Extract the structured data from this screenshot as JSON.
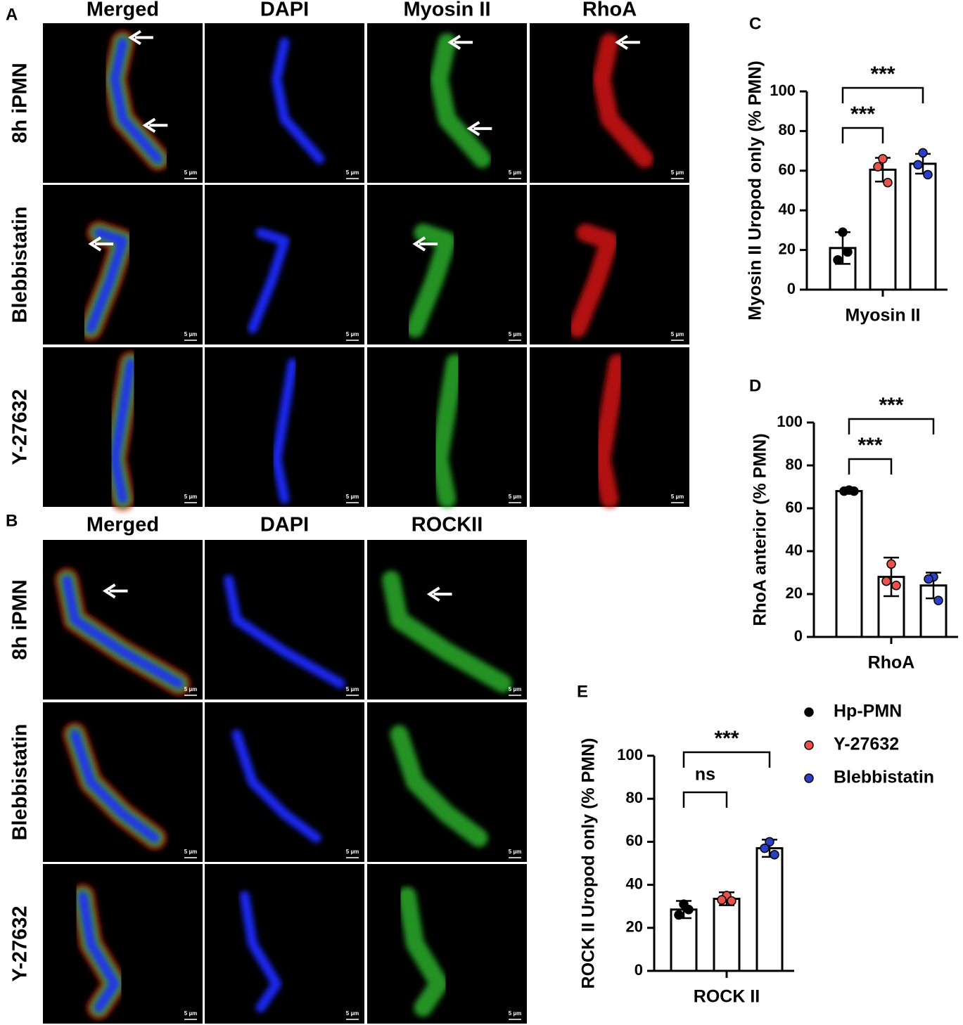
{
  "panel_A": {
    "letter": "A",
    "columns": [
      "Merged",
      "DAPI",
      "Myosin II",
      "RhoA"
    ],
    "rows": [
      "8h iPMN",
      "Blebbistatin",
      "Y-27632"
    ]
  },
  "panel_B": {
    "letter": "B",
    "columns": [
      "Merged",
      "DAPI",
      "ROCKII"
    ],
    "rows": [
      "8h iPMN",
      "Blebbistatin",
      "Y-27632"
    ]
  },
  "scale_bar": "5 µm",
  "legend": [
    {
      "name": "Hp-PMN",
      "color": "#000000"
    },
    {
      "name": "Y-27632",
      "color": "#e8524a"
    },
    {
      "name": "Blebbistatin",
      "color": "#2b3fc4"
    }
  ],
  "chart_data": [
    {
      "type": "bar",
      "letter": "C",
      "ylabel": "Myosin  II Uropod only (% PMN)",
      "categories": [
        "Myosin II"
      ],
      "series": [
        {
          "values": [
            21
          ],
          "errors": [
            8
          ],
          "points": [
            29,
            15,
            19
          ]
        },
        {
          "values": [
            60.5
          ],
          "errors": [
            6
          ],
          "points": [
            66,
            62,
            54
          ]
        },
        {
          "values": [
            63.5
          ],
          "errors": [
            5
          ],
          "points": [
            69,
            63,
            58
          ]
        }
      ],
      "ylim": [
        0,
        100
      ],
      "yticks": [
        0,
        20,
        40,
        60,
        80,
        100
      ],
      "annotations": [
        {
          "text": "***",
          "from": 0,
          "to": 1
        },
        {
          "text": "***",
          "from": 0,
          "to": 2
        }
      ]
    },
    {
      "type": "bar",
      "letter": "D",
      "ylabel": "RhoA anterior (% PMN)",
      "categories": [
        "RhoA"
      ],
      "series": [
        {
          "values": [
            68
          ],
          "errors": [
            1
          ],
          "points": [
            68.5,
            68,
            68
          ]
        },
        {
          "values": [
            28
          ],
          "errors": [
            9
          ],
          "points": [
            34,
            26,
            24
          ]
        },
        {
          "values": [
            24
          ],
          "errors": [
            6
          ],
          "points": [
            28,
            27,
            17
          ]
        }
      ],
      "ylim": [
        0,
        100
      ],
      "yticks": [
        0,
        20,
        40,
        60,
        80,
        100
      ],
      "annotations": [
        {
          "text": "***",
          "from": 0,
          "to": 1
        },
        {
          "text": "***",
          "from": 0,
          "to": 2
        }
      ]
    },
    {
      "type": "bar",
      "letter": "E",
      "ylabel": "ROCK  II Uropod only (% PMN)",
      "categories": [
        "ROCK II"
      ],
      "series": [
        {
          "values": [
            28.5
          ],
          "errors": [
            4
          ],
          "points": [
            31,
            26,
            28.5
          ]
        },
        {
          "values": [
            33.5
          ],
          "errors": [
            3
          ],
          "points": [
            35,
            33,
            32.5
          ]
        },
        {
          "values": [
            57
          ],
          "errors": [
            4
          ],
          "points": [
            60,
            57,
            54
          ]
        }
      ],
      "ylim": [
        0,
        100
      ],
      "yticks": [
        0,
        20,
        40,
        60,
        80,
        100
      ],
      "annotations": [
        {
          "text": "ns",
          "from": 0,
          "to": 1
        },
        {
          "text": "***",
          "from": 0,
          "to": 2
        }
      ]
    }
  ]
}
